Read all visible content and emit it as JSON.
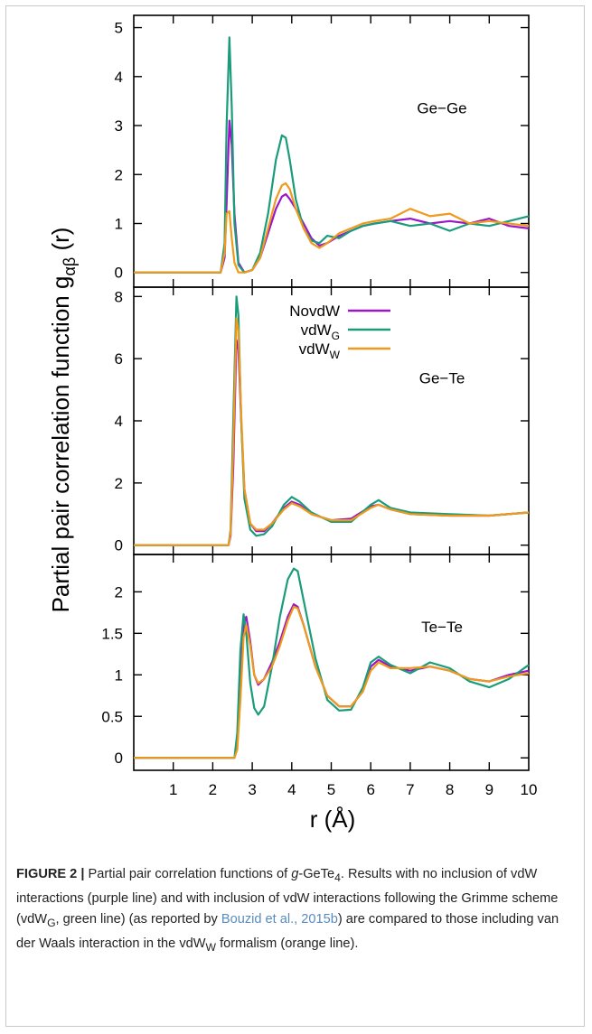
{
  "figure": {
    "ylabel": "Partial pair correlation function g",
    "ylabel_sub": "αβ",
    "ylabel_tail": " (r)",
    "xlabel": "r (Å)"
  },
  "legend": [
    {
      "label": "NovdW",
      "sub": "",
      "color": "#9a16c8"
    },
    {
      "label": "vdW",
      "sub": "G",
      "color": "#1a9c7a"
    },
    {
      "label": "vdW",
      "sub": "W",
      "color": "#ee9a1a"
    }
  ],
  "chart_data": [
    {
      "type": "line",
      "panel_label": "Ge−Ge",
      "xlim": [
        0,
        10
      ],
      "ylim": [
        -0.3,
        5.25
      ],
      "yticks": [
        0,
        1,
        2,
        3,
        4,
        5
      ],
      "yticklabels": [
        "0",
        "1",
        "2",
        "3",
        "4",
        "5"
      ],
      "series": [
        {
          "name": "NovdW",
          "color": "#9a16c8",
          "x": [
            0,
            2.2,
            2.3,
            2.35,
            2.42,
            2.48,
            2.55,
            2.65,
            2.8,
            3.0,
            3.2,
            3.4,
            3.6,
            3.75,
            3.85,
            3.95,
            4.1,
            4.3,
            4.5,
            4.7,
            4.9,
            5.2,
            5.5,
            5.8,
            6.1,
            6.5,
            7.0,
            7.5,
            8.0,
            8.5,
            9.0,
            9.5,
            10.0
          ],
          "y": [
            0,
            0,
            0.3,
            1.4,
            3.1,
            2.6,
            1.2,
            0.2,
            0.0,
            0.05,
            0.3,
            0.8,
            1.3,
            1.55,
            1.6,
            1.5,
            1.3,
            1.0,
            0.7,
            0.55,
            0.6,
            0.75,
            0.85,
            0.95,
            1.0,
            1.05,
            1.1,
            1.0,
            1.05,
            1.0,
            1.1,
            0.95,
            0.9
          ]
        },
        {
          "name": "vdW",
          "color": "#1a9c7a",
          "x": [
            0,
            2.2,
            2.3,
            2.35,
            2.42,
            2.48,
            2.55,
            2.65,
            2.8,
            3.0,
            3.2,
            3.4,
            3.6,
            3.75,
            3.85,
            3.95,
            4.1,
            4.3,
            4.5,
            4.7,
            4.9,
            5.2,
            5.5,
            5.8,
            6.1,
            6.5,
            7.0,
            7.5,
            8.0,
            8.5,
            9.0,
            9.5,
            10.0
          ],
          "y": [
            0,
            0,
            0.6,
            3.0,
            4.8,
            3.4,
            1.0,
            0.15,
            0.0,
            0.05,
            0.4,
            1.2,
            2.3,
            2.8,
            2.75,
            2.3,
            1.5,
            0.9,
            0.65,
            0.6,
            0.75,
            0.7,
            0.85,
            0.95,
            1.0,
            1.05,
            0.95,
            1.0,
            0.85,
            1.0,
            0.95,
            1.05,
            1.15
          ]
        },
        {
          "name": "vdW",
          "color": "#ee9a1a",
          "x": [
            0,
            2.2,
            2.3,
            2.35,
            2.42,
            2.48,
            2.55,
            2.65,
            2.8,
            3.0,
            3.2,
            3.4,
            3.6,
            3.75,
            3.85,
            3.95,
            4.1,
            4.3,
            4.5,
            4.7,
            4.9,
            5.2,
            5.5,
            5.8,
            6.1,
            6.5,
            7.0,
            7.5,
            8.0,
            8.5,
            9.0,
            9.5,
            10.0
          ],
          "y": [
            0,
            0,
            0.4,
            1.2,
            1.25,
            0.7,
            0.2,
            0.0,
            0.0,
            0.05,
            0.3,
            0.9,
            1.5,
            1.78,
            1.82,
            1.7,
            1.3,
            0.9,
            0.6,
            0.5,
            0.6,
            0.8,
            0.9,
            1.0,
            1.05,
            1.1,
            1.3,
            1.15,
            1.2,
            1.0,
            1.05,
            1.0,
            0.95
          ]
        }
      ]
    },
    {
      "type": "line",
      "panel_label": "Ge−Te",
      "xlim": [
        0,
        10
      ],
      "ylim": [
        -0.3,
        8.3
      ],
      "yticks": [
        0,
        2,
        4,
        6,
        8
      ],
      "yticklabels": [
        "0",
        "2",
        "4",
        "6",
        "8"
      ],
      "series": [
        {
          "name": "NovdW",
          "color": "#9a16c8",
          "x": [
            0,
            2.4,
            2.45,
            2.52,
            2.6,
            2.65,
            2.72,
            2.8,
            2.95,
            3.1,
            3.3,
            3.5,
            3.8,
            4.0,
            4.2,
            4.5,
            5.0,
            5.5,
            6.0,
            6.2,
            6.5,
            7.0,
            8.0,
            9.0,
            10.0
          ],
          "y": [
            0,
            0,
            0.3,
            2.5,
            6.6,
            6.3,
            4.0,
            1.8,
            0.7,
            0.45,
            0.45,
            0.7,
            1.2,
            1.4,
            1.3,
            1.0,
            0.8,
            0.85,
            1.25,
            1.3,
            1.15,
            1.0,
            0.95,
            0.95,
            1.05
          ]
        },
        {
          "name": "vdW",
          "color": "#1a9c7a",
          "x": [
            0,
            2.4,
            2.45,
            2.52,
            2.6,
            2.65,
            2.72,
            2.8,
            2.95,
            3.1,
            3.3,
            3.5,
            3.8,
            4.0,
            4.2,
            4.5,
            5.0,
            5.5,
            6.0,
            6.2,
            6.5,
            7.0,
            8.0,
            9.0,
            10.0
          ],
          "y": [
            0,
            0,
            0.5,
            4.0,
            8.0,
            7.4,
            4.0,
            1.5,
            0.5,
            0.3,
            0.35,
            0.6,
            1.3,
            1.55,
            1.4,
            1.05,
            0.75,
            0.75,
            1.3,
            1.45,
            1.2,
            1.05,
            1.0,
            0.95,
            1.05
          ]
        },
        {
          "name": "vdW",
          "color": "#ee9a1a",
          "x": [
            0,
            2.4,
            2.45,
            2.52,
            2.6,
            2.65,
            2.72,
            2.8,
            2.95,
            3.1,
            3.3,
            3.5,
            3.8,
            4.0,
            4.2,
            4.5,
            5.0,
            5.5,
            6.0,
            6.2,
            6.5,
            7.0,
            8.0,
            9.0,
            10.0
          ],
          "y": [
            0,
            0,
            0.4,
            3.2,
            7.3,
            6.9,
            4.2,
            1.8,
            0.7,
            0.5,
            0.5,
            0.7,
            1.15,
            1.35,
            1.25,
            1.0,
            0.8,
            0.8,
            1.2,
            1.3,
            1.15,
            1.0,
            0.95,
            0.95,
            1.05
          ]
        }
      ]
    },
    {
      "type": "line",
      "panel_label": "Te−Te",
      "xlim": [
        0,
        10
      ],
      "ylim": [
        -0.15,
        2.45
      ],
      "yticks": [
        0,
        0.5,
        1,
        1.5,
        2
      ],
      "yticklabels": [
        "0",
        "0.5",
        "1",
        "1.5",
        "2"
      ],
      "xticks": [
        1,
        2,
        3,
        4,
        5,
        6,
        7,
        8,
        9,
        10
      ],
      "xticklabels": [
        "1",
        "2",
        "3",
        "4",
        "5",
        "6",
        "7",
        "8",
        "9",
        "10"
      ],
      "series": [
        {
          "name": "NovdW",
          "color": "#9a16c8",
          "x": [
            0,
            2.55,
            2.62,
            2.7,
            2.78,
            2.85,
            2.95,
            3.05,
            3.15,
            3.3,
            3.5,
            3.7,
            3.9,
            4.05,
            4.15,
            4.3,
            4.6,
            4.9,
            5.2,
            5.5,
            5.8,
            6.0,
            6.2,
            6.5,
            7.0,
            7.5,
            8.0,
            8.5,
            9.0,
            9.5,
            10.0
          ],
          "y": [
            0,
            0,
            0.15,
            0.9,
            1.6,
            1.7,
            1.4,
            1.0,
            0.88,
            0.95,
            1.15,
            1.4,
            1.7,
            1.85,
            1.82,
            1.6,
            1.1,
            0.75,
            0.62,
            0.62,
            0.8,
            1.1,
            1.18,
            1.1,
            1.05,
            1.1,
            1.05,
            0.95,
            0.92,
            1.0,
            1.05
          ]
        },
        {
          "name": "vdW",
          "color": "#1a9c7a",
          "x": [
            0,
            2.55,
            2.62,
            2.7,
            2.78,
            2.85,
            2.95,
            3.05,
            3.15,
            3.3,
            3.5,
            3.7,
            3.9,
            4.05,
            4.15,
            4.3,
            4.6,
            4.9,
            5.2,
            5.5,
            5.8,
            6.0,
            6.2,
            6.5,
            7.0,
            7.5,
            8.0,
            8.5,
            9.0,
            9.5,
            10.0
          ],
          "y": [
            0,
            0,
            0.3,
            1.3,
            1.73,
            1.5,
            0.9,
            0.6,
            0.52,
            0.62,
            1.1,
            1.7,
            2.15,
            2.28,
            2.25,
            1.9,
            1.2,
            0.7,
            0.57,
            0.58,
            0.85,
            1.15,
            1.22,
            1.12,
            1.02,
            1.15,
            1.08,
            0.92,
            0.85,
            0.95,
            1.12
          ]
        },
        {
          "name": "vdW",
          "color": "#ee9a1a",
          "x": [
            0,
            2.55,
            2.62,
            2.7,
            2.78,
            2.85,
            2.95,
            3.05,
            3.15,
            3.3,
            3.5,
            3.7,
            3.9,
            4.05,
            4.15,
            4.3,
            4.6,
            4.9,
            5.2,
            5.5,
            5.8,
            6.0,
            6.2,
            6.5,
            7.0,
            7.5,
            8.0,
            8.5,
            9.0,
            9.5,
            10.0
          ],
          "y": [
            0,
            0,
            0.1,
            0.7,
            1.45,
            1.6,
            1.35,
            1.0,
            0.9,
            0.95,
            1.1,
            1.35,
            1.65,
            1.82,
            1.8,
            1.6,
            1.1,
            0.75,
            0.62,
            0.62,
            0.8,
            1.05,
            1.15,
            1.08,
            1.08,
            1.1,
            1.05,
            0.95,
            0.92,
            0.98,
            1.02
          ]
        }
      ]
    }
  ],
  "caption": {
    "lead": "FIGURE 2 |",
    "text_1": " Partial pair correlation functions of ",
    "italic_g": "g",
    "text_2": "-GeTe",
    "sub_4": "4",
    "text_3": ". Results with no inclusion of vdW interactions (purple line) and with inclusion of vdW interactions following the Grimme scheme (vdW",
    "sub_g": "G",
    "text_4": ", green line) (as reported by ",
    "ref": "Bouzid et al., 2015b",
    "text_5": ") are compared to those including van der Waals interaction in the vdW",
    "sub_w": "W",
    "text_6": " formalism (orange line)."
  }
}
